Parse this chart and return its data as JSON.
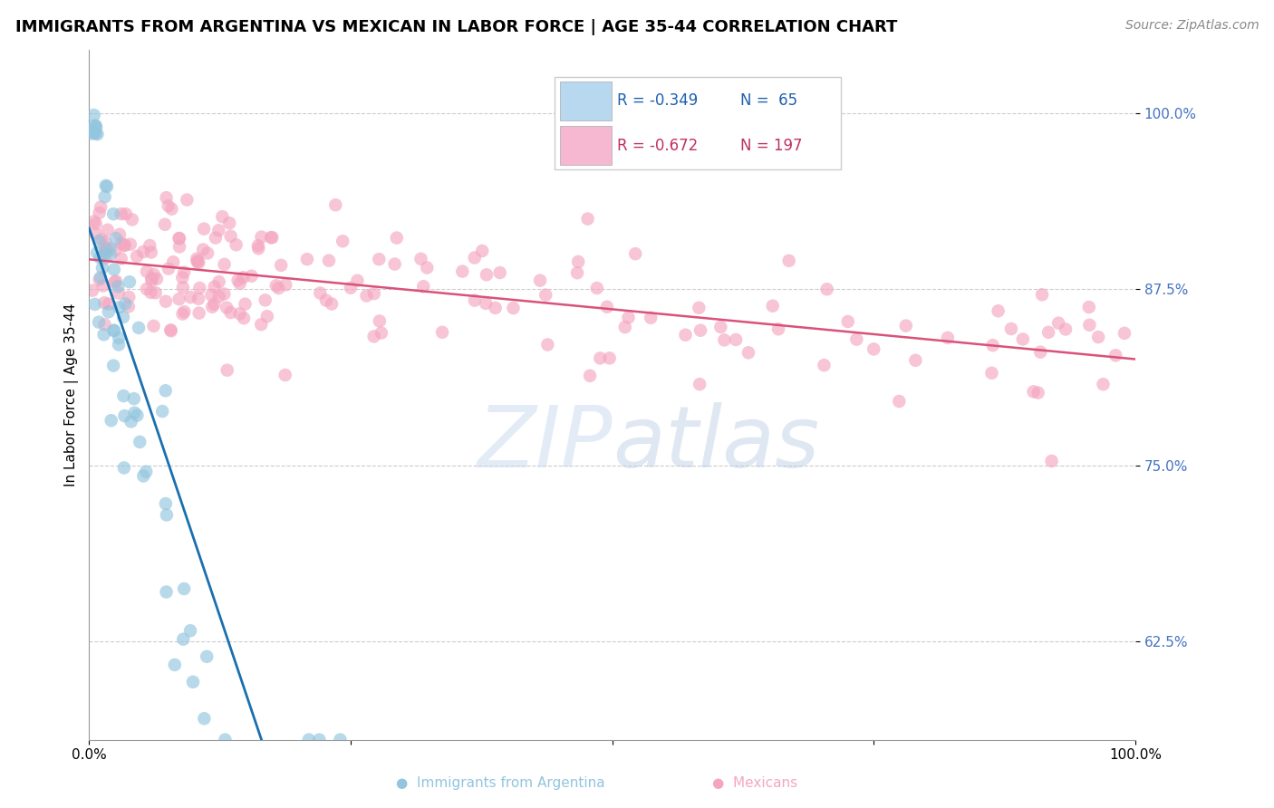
{
  "title": "IMMIGRANTS FROM ARGENTINA VS MEXICAN IN LABOR FORCE | AGE 35-44 CORRELATION CHART",
  "source": "Source: ZipAtlas.com",
  "ylabel": "In Labor Force | Age 35-44",
  "xlim": [
    0.0,
    1.0
  ],
  "ylim": [
    0.555,
    1.045
  ],
  "yticks": [
    0.625,
    0.75,
    0.875,
    1.0
  ],
  "ytick_labels": [
    "62.5%",
    "75.0%",
    "87.5%",
    "100.0%"
  ],
  "xticks": [
    0.0,
    0.25,
    0.5,
    0.75,
    1.0
  ],
  "xtick_labels": [
    "0.0%",
    "",
    "",
    "",
    "100.0%"
  ],
  "argentina_R": -0.349,
  "argentina_N": 65,
  "mexico_R": -0.672,
  "mexico_N": 197,
  "argentina_color": "#92c5de",
  "mexico_color": "#f4a6c0",
  "argentina_line_color": "#1a6faf",
  "mexico_line_color": "#d9527a",
  "title_fontsize": 13,
  "axis_label_fontsize": 11,
  "tick_fontsize": 11,
  "source_fontsize": 10
}
